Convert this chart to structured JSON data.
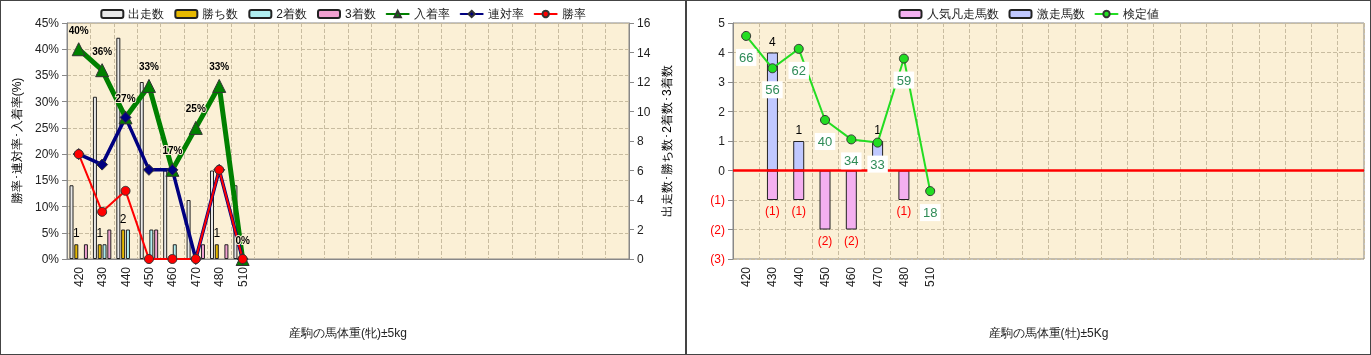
{
  "chart_data": [
    {
      "type": "bar",
      "categories": [
        "420",
        "430",
        "440",
        "450",
        "460",
        "470",
        "480",
        "510",
        null,
        null,
        null,
        null,
        null,
        null,
        null,
        null,
        null,
        null,
        null,
        null,
        null,
        null,
        null,
        null
      ],
      "xlabel": "産駒の馬体重(牝)±5kg",
      "ylabel": "勝率･連対率･入着率(%)",
      "y2label": "出走数･勝ち数･2着数･3着数",
      "ylim": [
        0,
        45
      ],
      "yticks": [
        {
          "value": 0,
          "label": "0%"
        },
        {
          "value": 5,
          "label": "5%"
        },
        {
          "value": 10,
          "label": "10%"
        },
        {
          "value": 15,
          "label": "15%"
        },
        {
          "value": 20,
          "label": "20%"
        },
        {
          "value": 25,
          "label": "25%"
        },
        {
          "value": 30,
          "label": "30%"
        },
        {
          "value": 35,
          "label": "35%"
        },
        {
          "value": 40,
          "label": "40%"
        },
        {
          "value": 45,
          "label": "45%"
        }
      ],
      "y2lim": [
        0,
        16
      ],
      "y2ticks": [
        0,
        2,
        4,
        6,
        8,
        10,
        12,
        14,
        16
      ],
      "grid": true,
      "legend": "top",
      "series": [
        {
          "name": "出走数",
          "axis": "y2",
          "color": "#e8e8e8",
          "values": [
            5,
            11,
            15,
            12,
            6,
            4,
            6,
            5,
            null,
            null,
            null,
            null,
            null,
            null,
            null,
            null,
            null,
            null,
            null,
            null,
            null,
            null,
            null,
            null
          ]
        },
        {
          "name": "勝ち数",
          "axis": "y2",
          "color": "#e6b800",
          "values": [
            1,
            1,
            2,
            0,
            0,
            0,
            1,
            0,
            null,
            null,
            null,
            null,
            null,
            null,
            null,
            null,
            null,
            null,
            null,
            null,
            null,
            null,
            null,
            null
          ],
          "value_labels": [
            "1",
            "1",
            "2",
            null,
            null,
            null,
            "1",
            null,
            null,
            null,
            null,
            null,
            null,
            null,
            null,
            null,
            null,
            null,
            null,
            null,
            null,
            null,
            null,
            null
          ]
        },
        {
          "name": "2着数",
          "axis": "y2",
          "color": "#b0eef0",
          "values": [
            0,
            1,
            2,
            2,
            1,
            0,
            0,
            0,
            null,
            null,
            null,
            null,
            null,
            null,
            null,
            null,
            null,
            null,
            null,
            null,
            null,
            null,
            null,
            null
          ]
        },
        {
          "name": "3着数",
          "axis": "y2",
          "color": "#f0a0d0",
          "values": [
            1,
            2,
            0,
            2,
            0,
            1,
            1,
            0,
            null,
            null,
            null,
            null,
            null,
            null,
            null,
            null,
            null,
            null,
            null,
            null,
            null,
            null,
            null,
            null
          ]
        },
        {
          "name": "入着率",
          "type": "line",
          "color": "#008000",
          "marker": "triangle",
          "values": [
            40,
            36,
            27,
            33,
            17,
            25,
            33,
            0,
            null,
            null,
            null,
            null,
            null,
            null,
            null,
            null,
            null,
            null,
            null,
            null,
            null,
            null,
            null,
            null
          ],
          "value_labels": [
            "40%",
            "36%",
            "27%",
            "33%",
            "17%",
            "25%",
            "33%",
            "0%",
            null,
            null,
            null,
            null,
            null,
            null,
            null,
            null,
            null,
            null,
            null,
            null,
            null,
            null,
            null,
            null
          ]
        },
        {
          "name": "連対率",
          "type": "line",
          "color": "#000080",
          "marker": "diamond",
          "values": [
            20,
            18,
            27,
            17,
            17,
            0,
            17,
            0,
            null,
            null,
            null,
            null,
            null,
            null,
            null,
            null,
            null,
            null,
            null,
            null,
            null,
            null,
            null,
            null
          ]
        },
        {
          "name": "勝率",
          "type": "line",
          "color": "#ff0000",
          "marker": "circle",
          "values": [
            20,
            9,
            13,
            0,
            0,
            0,
            17,
            0,
            null,
            null,
            null,
            null,
            null,
            null,
            null,
            null,
            null,
            null,
            null,
            null,
            null,
            null,
            null,
            null
          ]
        }
      ]
    },
    {
      "type": "bar",
      "categories": [
        "420",
        "430",
        "440",
        "450",
        "460",
        "470",
        "480",
        "510",
        null,
        null,
        null,
        null,
        null,
        null,
        null,
        null,
        null,
        null,
        null,
        null,
        null,
        null,
        null,
        null
      ],
      "xlabel": "産駒の馬体重(牡)±5Kg",
      "ylim": [
        -3,
        5
      ],
      "yticks": [
        {
          "value": -3,
          "label": "(3)"
        },
        {
          "value": -2,
          "label": "(2)"
        },
        {
          "value": -1,
          "label": "(1)"
        },
        0,
        1,
        2,
        3,
        4,
        5
      ],
      "y2lim": [
        -3,
        70
      ],
      "grid": true,
      "legend": "top",
      "stacked": true,
      "ref_lines": [
        {
          "axis": "y",
          "value": 0,
          "color": "#ff0000"
        }
      ],
      "series": [
        {
          "name": "人気凡走馬数",
          "color": "#f4b0f0",
          "values": [
            0,
            -1,
            -1,
            -2,
            -2,
            0,
            -1,
            0,
            null,
            null,
            null,
            null,
            null,
            null,
            null,
            null,
            null,
            null,
            null,
            null,
            null,
            null,
            null,
            null
          ],
          "value_labels": [
            null,
            "(1)",
            "(1)",
            "(2)",
            "(2)",
            null,
            "(1)",
            null,
            null,
            null,
            null,
            null,
            null,
            null,
            null,
            null,
            null,
            null,
            null,
            null,
            null,
            null,
            null,
            null
          ]
        },
        {
          "name": "激走馬数",
          "color": "#c0c8ff",
          "values": [
            0,
            4,
            1,
            0,
            0,
            1,
            0,
            0,
            null,
            null,
            null,
            null,
            null,
            null,
            null,
            null,
            null,
            null,
            null,
            null,
            null,
            null,
            null,
            null
          ],
          "value_labels": [
            null,
            "4",
            "1",
            null,
            null,
            "1",
            null,
            null,
            null,
            null,
            null,
            null,
            null,
            null,
            null,
            null,
            null,
            null,
            null,
            null,
            null,
            null,
            null,
            null
          ]
        },
        {
          "name": "検定値",
          "type": "line",
          "axis": "y2",
          "color": "#22dd22",
          "marker": "circle",
          "values": [
            66,
            56,
            62,
            40,
            34,
            33,
            59,
            18,
            null,
            null,
            null,
            null,
            null,
            null,
            null,
            null,
            null,
            null,
            null,
            null,
            null,
            null,
            null,
            null
          ],
          "value_labels": [
            "66",
            "56",
            "62",
            "40",
            "34",
            "33",
            "59",
            "18",
            null,
            null,
            null,
            null,
            null,
            null,
            null,
            null,
            null,
            null,
            null,
            null,
            null,
            null,
            null,
            null
          ]
        }
      ]
    }
  ]
}
